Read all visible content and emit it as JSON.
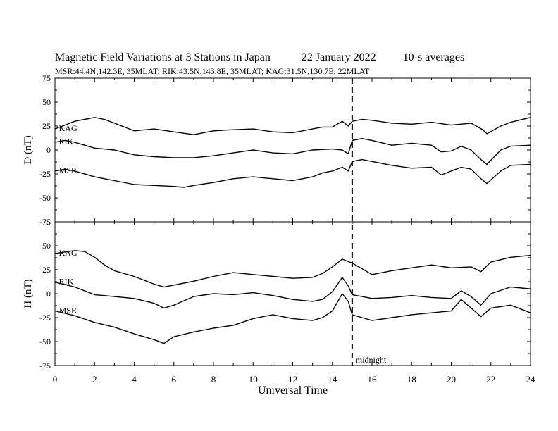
{
  "title": {
    "main": "Magnetic Field Variations at 3 Stations in Japan",
    "date": "22 January 2022",
    "averaging": "10-s averages"
  },
  "subtitle": "MSR:44.4N,142.3E, 35MLAT;  RIK:43.5N,143.8E, 35MLAT;  KAG:31.5N,130.7E, 22MLAT",
  "colors": {
    "line": "#000000",
    "background": "#ffffff"
  },
  "chart_data": {
    "type": "line",
    "xlabel": "Universal Time",
    "xlim": [
      0,
      24
    ],
    "xticks": [
      0,
      2,
      4,
      6,
      8,
      10,
      12,
      14,
      16,
      18,
      20,
      22,
      24
    ],
    "annotation": {
      "x": 15,
      "label": "midnight",
      "style": "dashed vertical line"
    },
    "panels": [
      {
        "ylabel": "D (nT)",
        "ylim": [
          -75,
          75
        ],
        "yticks": [
          75,
          50,
          25,
          0,
          -25,
          -50,
          -75
        ],
        "series": [
          {
            "name": "KAG",
            "x": [
              0,
              1,
              1.5,
              2,
              2.5,
              3,
              4,
              5,
              6,
              7,
              8,
              8.8,
              10,
              11,
              12,
              13,
              13.5,
              14,
              14.5,
              14.8,
              15,
              15.5,
              16,
              17,
              18,
              19,
              20,
              21,
              21.6,
              21.8,
              22.5,
              23,
              24
            ],
            "y": [
              22,
              30,
              32,
              34,
              32,
              28,
              20,
              22,
              19,
              16,
              20,
              21,
              22,
              19,
              18,
              22,
              24,
              24,
              30,
              25,
              30,
              32,
              31,
              28,
              27,
              29,
              26,
              28,
              21,
              17,
              25,
              29,
              34
            ]
          },
          {
            "name": "RIK",
            "x": [
              0,
              0.5,
              1,
              2,
              3,
              4,
              5,
              6,
              7,
              8,
              9,
              10,
              11,
              12,
              13,
              14,
              14.5,
              14.8,
              15,
              15.5,
              16,
              17,
              18,
              19,
              19.5,
              20,
              20.5,
              21,
              21.5,
              21.8,
              22.5,
              23,
              24
            ],
            "y": [
              8,
              10,
              8,
              2,
              0,
              -5,
              -7,
              -8,
              -8,
              -6,
              -3,
              0,
              -3,
              -4,
              0,
              1,
              0,
              -4,
              10,
              12,
              10,
              5,
              7,
              5,
              -2,
              -1,
              4,
              0,
              -10,
              -15,
              0,
              4,
              5
            ]
          },
          {
            "name": "MSR",
            "x": [
              0,
              0.5,
              1,
              2,
              3,
              4,
              5,
              6,
              6.5,
              7,
              8,
              9,
              10,
              11,
              12,
              13,
              13.5,
              14,
              14.5,
              14.8,
              15,
              15.5,
              16,
              17,
              18,
              19,
              19.5,
              20,
              20.5,
              21,
              21.5,
              21.8,
              22.5,
              23,
              24
            ],
            "y": [
              -22,
              -20,
              -22,
              -28,
              -32,
              -36,
              -37,
              -38,
              -39,
              -37,
              -34,
              -30,
              -28,
              -30,
              -32,
              -28,
              -24,
              -22,
              -18,
              -22,
              -12,
              -10,
              -12,
              -16,
              -19,
              -18,
              -26,
              -22,
              -18,
              -20,
              -30,
              -35,
              -22,
              -16,
              -15
            ]
          }
        ]
      },
      {
        "ylabel": "H (nT)",
        "ylim": [
          -75,
          75
        ],
        "yticks": [
          75,
          50,
          25,
          0,
          -25,
          -50,
          -75
        ],
        "series": [
          {
            "name": "KAG",
            "x": [
              0,
              1,
              1.5,
              2,
              2.5,
              3,
              4,
              5,
              5.5,
              6,
              7,
              8,
              9,
              10,
              11,
              12,
              13,
              13.5,
              14,
              14.5,
              15,
              15.5,
              16,
              17,
              18,
              19,
              20,
              21,
              21.5,
              22,
              23,
              24
            ],
            "y": [
              42,
              45,
              44,
              38,
              30,
              24,
              18,
              10,
              7,
              9,
              13,
              18,
              22,
              20,
              18,
              16,
              17,
              21,
              28,
              36,
              32,
              26,
              20,
              24,
              27,
              30,
              27,
              28,
              23,
              33,
              38,
              40
            ]
          },
          {
            "name": "RIK",
            "x": [
              0,
              1,
              2,
              3,
              4,
              5,
              5.5,
              6,
              7,
              8,
              9,
              10,
              11,
              12,
              13,
              13.5,
              14,
              14.5,
              14.8,
              15,
              15.5,
              16,
              17,
              18,
              19,
              20,
              20.5,
              21,
              21.5,
              22,
              23,
              24
            ],
            "y": [
              12,
              7,
              -1,
              -3,
              -5,
              -10,
              -15,
              -12,
              -3,
              0,
              -1,
              1,
              -2,
              -6,
              -8,
              -6,
              2,
              17,
              8,
              -1,
              -3,
              -5,
              -4,
              -2,
              -4,
              -5,
              3,
              -3,
              -12,
              0,
              7,
              5
            ]
          },
          {
            "name": "MSR",
            "x": [
              0,
              1,
              2,
              3,
              4,
              5,
              5.5,
              6,
              7,
              8,
              9,
              10,
              11,
              12,
              13,
              13.5,
              14,
              14.5,
              14.8,
              15,
              15.5,
              16,
              17,
              18,
              19,
              20,
              20.5,
              21,
              21.5,
              22,
              23,
              24
            ],
            "y": [
              -18,
              -23,
              -30,
              -35,
              -42,
              -48,
              -52,
              -45,
              -40,
              -36,
              -33,
              -26,
              -22,
              -26,
              -28,
              -25,
              -18,
              0,
              -8,
              -22,
              -25,
              -28,
              -25,
              -22,
              -20,
              -18,
              -6,
              -15,
              -24,
              -15,
              -12,
              -20
            ]
          }
        ]
      }
    ]
  }
}
